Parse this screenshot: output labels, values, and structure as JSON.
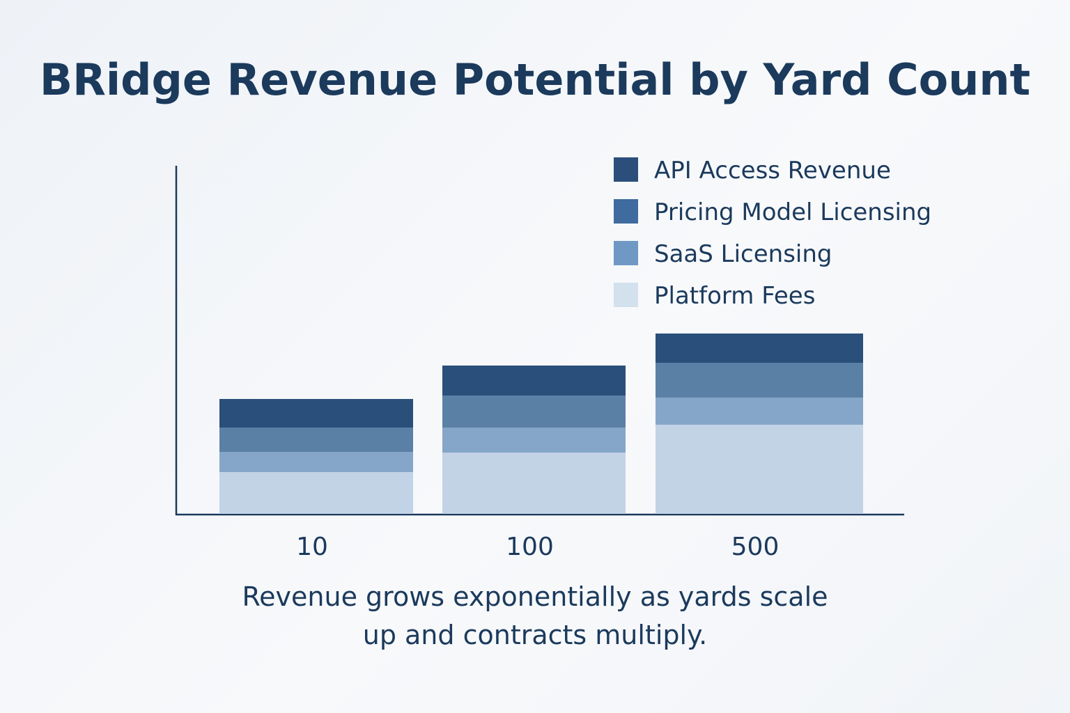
{
  "chart_data": {
    "type": "bar",
    "stacked": true,
    "title": "BRidge Revenue Potential by Yard Count",
    "xlabel": "",
    "ylabel": "",
    "categories": [
      "10",
      "100",
      "500"
    ],
    "series": [
      {
        "name": "Platform Fees",
        "color": "#c3d3e6",
        "values": [
          60,
          88,
          128
        ]
      },
      {
        "name": "SaaS Licensing",
        "color": "#85a6c8",
        "values": [
          29,
          36,
          39
        ]
      },
      {
        "name": "Pricing Model Licensing",
        "color": "#5b80a6",
        "values": [
          35,
          46,
          50
        ]
      },
      {
        "name": "API Access Revenue",
        "color": "#294f7a",
        "values": [
          41,
          43,
          42
        ]
      }
    ],
    "legend_order": [
      "API Access Revenue",
      "Pricing Model Licensing",
      "SaaS Licensing",
      "Platform Fees"
    ],
    "legend_swatch_colors": {
      "API Access Revenue": "#2b4f7a",
      "Pricing Model Licensing": "#3f6b9e",
      "SaaS Licensing": "#6f98c5",
      "Platform Fees": "#d3e0ee"
    },
    "ylim": [
      0,
      500
    ],
    "grid": false,
    "legend_position": "top-right",
    "caption": [
      "Revenue grows exponentially as yards scale",
      "up and contracts multiply."
    ]
  }
}
